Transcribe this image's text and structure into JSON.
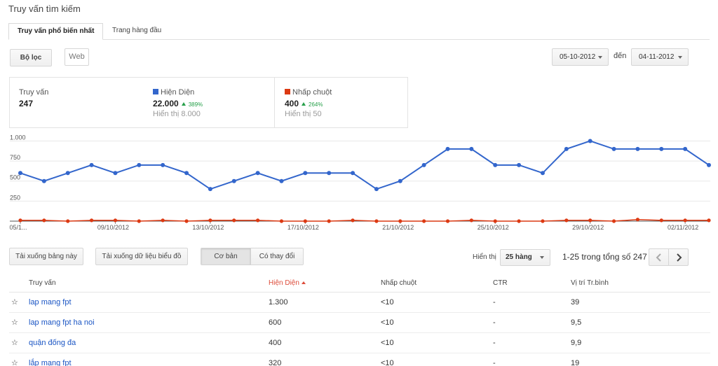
{
  "header": {
    "title": "Truy vấn tìm kiếm"
  },
  "tabs": [
    {
      "label": "Truy vấn phổ biến nhất",
      "active": true
    },
    {
      "label": "Trang hàng đầu",
      "active": false
    }
  ],
  "toolbar": {
    "filter_label": "Bộ lọc",
    "web_label": "Web"
  },
  "date_range": {
    "start": "05-10-2012",
    "to_label": "đến",
    "end": "04-11-2012"
  },
  "stats": {
    "queries": {
      "label": "Truy vấn",
      "value": "247"
    },
    "impressions": {
      "label": "Hiện Diện",
      "value": "22.000",
      "change": "389%",
      "sub": "Hiển thị 8.000",
      "color": "#3366cc"
    },
    "clicks": {
      "label": "Nhấp chuột",
      "value": "400",
      "change": "264%",
      "sub": "Hiển thị 50",
      "color": "#dc3912"
    }
  },
  "chart_data": {
    "type": "line",
    "x": [
      "05/10/2012",
      "06/10/2012",
      "07/10/2012",
      "08/10/2012",
      "09/10/2012",
      "10/10/2012",
      "11/10/2012",
      "12/10/2012",
      "13/10/2012",
      "14/10/2012",
      "15/10/2012",
      "16/10/2012",
      "17/10/2012",
      "18/10/2012",
      "19/10/2012",
      "20/10/2012",
      "21/10/2012",
      "22/10/2012",
      "23/10/2012",
      "24/10/2012",
      "25/10/2012",
      "26/10/2012",
      "27/10/2012",
      "28/10/2012",
      "29/10/2012",
      "30/10/2012",
      "31/10/2012",
      "01/11/2012",
      "02/11/2012",
      "03/11/2012"
    ],
    "x_tick_labels": [
      "05/1...",
      "09/10/2012",
      "13/10/2012",
      "17/10/2012",
      "21/10/2012",
      "25/10/2012",
      "29/10/2012",
      "02/11/2012"
    ],
    "x_tick_index": [
      0,
      4,
      8,
      12,
      16,
      20,
      24,
      28
    ],
    "y_ticks": [
      "250",
      "500",
      "750",
      "1.000"
    ],
    "y_tick_values": [
      250,
      500,
      750,
      1000
    ],
    "ylim": [
      0,
      1100
    ],
    "grid": true,
    "series": [
      {
        "name": "Hiện Diện",
        "color": "#3366cc",
        "values": [
          600,
          500,
          600,
          700,
          600,
          700,
          700,
          600,
          400,
          500,
          600,
          500,
          600,
          600,
          600,
          400,
          500,
          700,
          900,
          900,
          700,
          700,
          600,
          900,
          1000,
          900,
          900,
          900,
          900,
          700
        ]
      },
      {
        "name": "Nhấp chuột",
        "color": "#dc3912",
        "values": [
          10,
          10,
          0,
          10,
          10,
          0,
          10,
          0,
          10,
          10,
          10,
          0,
          0,
          0,
          10,
          0,
          0,
          0,
          0,
          10,
          0,
          0,
          0,
          10,
          10,
          0,
          20,
          10,
          10,
          10
        ]
      }
    ]
  },
  "actions": {
    "download_table": "Tải xuống bảng này",
    "download_chart": "Tải xuống dữ liệu biểu đồ",
    "basic": "Cơ bản",
    "changes": "Có thay đổi"
  },
  "pagination": {
    "show_label": "Hiển thị",
    "rows_value": "25 hàng",
    "range": "1-25 trong tổng số 247"
  },
  "table": {
    "columns": [
      "Truy vấn",
      "Hiện Diện",
      "Nhấp chuột",
      "CTR",
      "Vị trí Tr.bình"
    ],
    "rows": [
      {
        "query": "lap mang fpt",
        "impressions": "1.300",
        "clicks": "<10",
        "ctr": "-",
        "position": "39"
      },
      {
        "query": "lap mang fpt ha noi",
        "impressions": "600",
        "clicks": "<10",
        "ctr": "-",
        "position": "9,5"
      },
      {
        "query": "quận đống đa",
        "impressions": "400",
        "clicks": "<10",
        "ctr": "-",
        "position": "9,9"
      },
      {
        "query": "lắp mạng fpt",
        "impressions": "320",
        "clicks": "<10",
        "ctr": "-",
        "position": "19"
      }
    ]
  }
}
